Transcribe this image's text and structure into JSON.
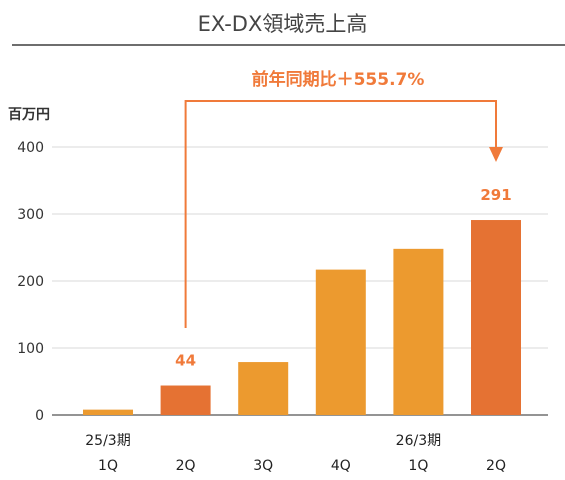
{
  "title": "EX-DX領域売上高",
  "y_unit": "百万円",
  "annotation": {
    "text": "前年同期比＋555.7%",
    "color": "#f07a3a"
  },
  "colors": {
    "highlight": "#e57233",
    "normal": "#ec9a2f",
    "value_label": "#f07a3a",
    "grid": "#d9d9d9",
    "axis": "#555555"
  },
  "chart_data": {
    "type": "bar",
    "title": "EX-DX領域売上高",
    "ylabel": "百万円",
    "xlabel": "",
    "ylim": [
      0,
      400
    ],
    "yticks": [
      0,
      100,
      200,
      300,
      400
    ],
    "grid": true,
    "categories": [
      "1Q",
      "2Q",
      "3Q",
      "4Q",
      "1Q",
      "2Q"
    ],
    "period_labels": [
      "25/3期",
      "",
      "",
      "",
      "26/3期",
      ""
    ],
    "values": [
      8,
      44,
      79,
      217,
      248,
      291
    ],
    "highlighted": [
      false,
      true,
      false,
      false,
      false,
      true
    ],
    "data_labels": [
      "",
      "44",
      "",
      "",
      "",
      "291"
    ]
  }
}
